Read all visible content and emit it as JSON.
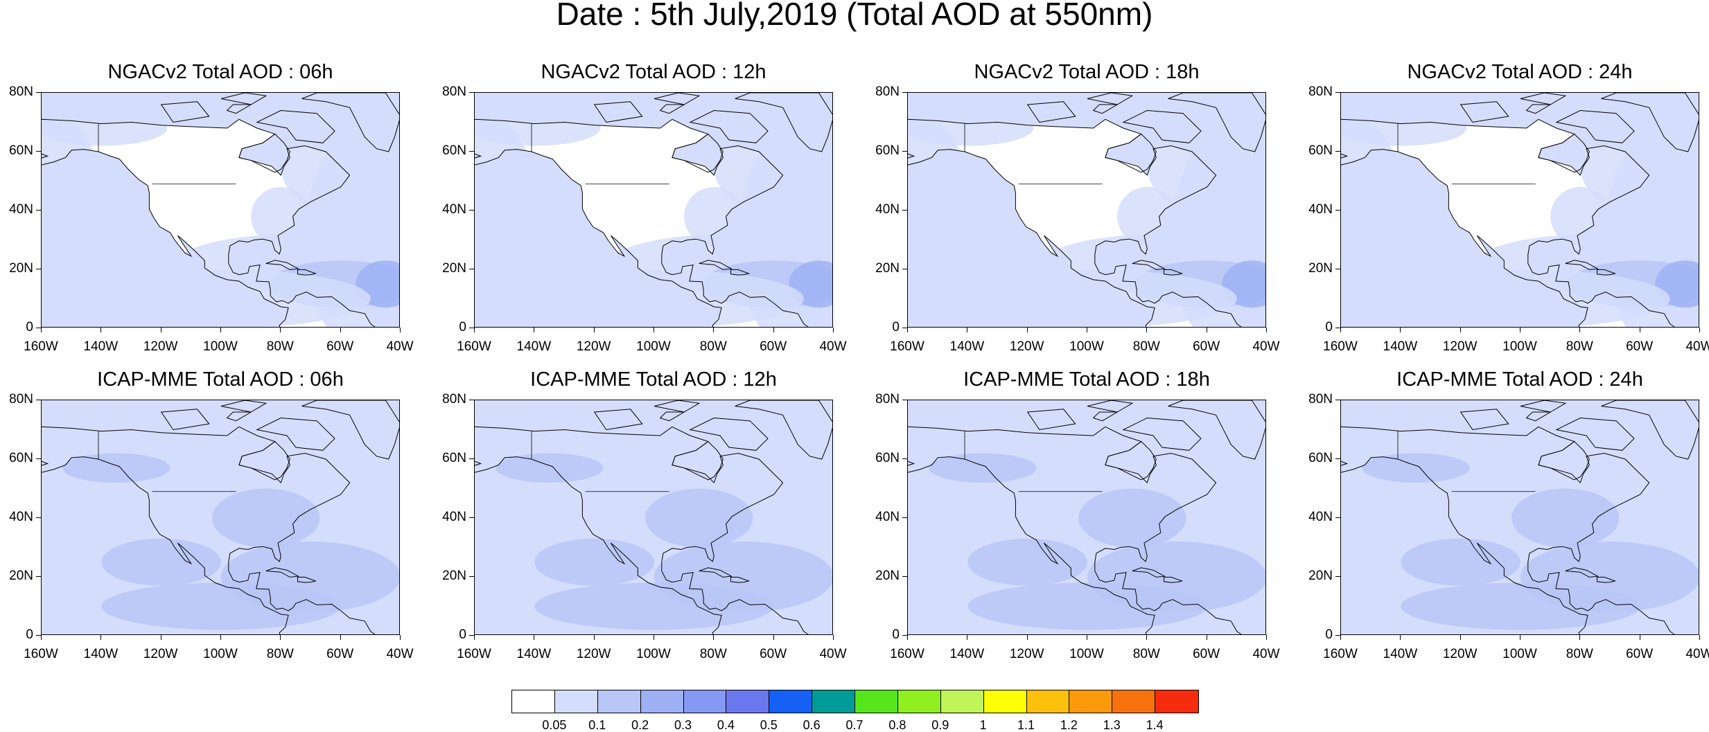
{
  "figure": {
    "title": "Date : 5th July,2019 (Total AOD at 550nm)",
    "lat_labels": [
      "80N",
      "60N",
      "40N",
      "20N",
      "0"
    ],
    "lon_labels": [
      "160W",
      "140W",
      "120W",
      "100W",
      "80W",
      "60W",
      "40W"
    ]
  },
  "panels": [
    {
      "title": "NGACv2 Total AOD : 06h",
      "model": "NGACv2",
      "hour": "06h"
    },
    {
      "title": "NGACv2 Total AOD : 12h",
      "model": "NGACv2",
      "hour": "12h"
    },
    {
      "title": "NGACv2 Total AOD : 18h",
      "model": "NGACv2",
      "hour": "18h"
    },
    {
      "title": "NGACv2 Total AOD : 24h",
      "model": "NGACv2",
      "hour": "24h"
    },
    {
      "title": "ICAP-MME Total AOD : 06h",
      "model": "ICAP-MME",
      "hour": "06h"
    },
    {
      "title": "ICAP-MME Total AOD : 12h",
      "model": "ICAP-MME",
      "hour": "12h"
    },
    {
      "title": "ICAP-MME Total AOD : 18h",
      "model": "ICAP-MME",
      "hour": "18h"
    },
    {
      "title": "ICAP-MME Total AOD : 24h",
      "model": "ICAP-MME",
      "hour": "24h"
    }
  ],
  "colorbar": {
    "labels": [
      "0.05",
      "0.1",
      "0.2",
      "0.3",
      "0.4",
      "0.5",
      "0.6",
      "0.7",
      "0.8",
      "0.9",
      "1",
      "1.1",
      "1.2",
      "1.3",
      "1.4"
    ],
    "colors": [
      "#ffffff",
      "#d4ddfb",
      "#b8c7f7",
      "#9db1f4",
      "#8599f2",
      "#6b77ef",
      "#1560f5",
      "#009b96",
      "#57e61c",
      "#8fef1f",
      "#c0f55a",
      "#fefe06",
      "#fdc10d",
      "#fb9a0d",
      "#f7720c",
      "#f52c0d"
    ]
  },
  "map_colors": {
    "land_low": "#ffffff",
    "aod_low": "#d4ddfb",
    "aod_mid": "#b8c7f7",
    "aod_high": "#9db1f4",
    "coastline": "#000000"
  }
}
